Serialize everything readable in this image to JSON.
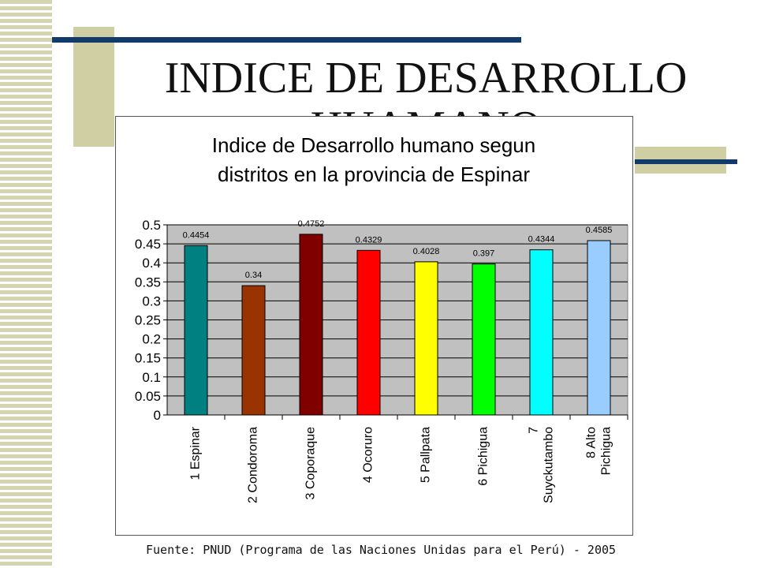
{
  "slide": {
    "title": "INDICE DE DESARROLLO HUAMANO",
    "source": "Fuente: PNUD (Programa de las Naciones Unidas para el Perú) - 2005"
  },
  "chart_data": {
    "type": "bar",
    "title_lines": [
      "Indice de Desarrollo humano segun",
      "distritos en la provincia de Espinar"
    ],
    "categories": [
      [
        "1 Espinar"
      ],
      [
        "2 Condoroma"
      ],
      [
        "3 Coporaque"
      ],
      [
        "4 Ocoruro"
      ],
      [
        "5 Pallpata"
      ],
      [
        "6 Pichigua"
      ],
      [
        "7",
        "Suyckutambo"
      ],
      [
        "8 Alto",
        "Pichigua"
      ]
    ],
    "values": [
      0.4454,
      0.34,
      0.4752,
      0.4329,
      0.4028,
      0.397,
      0.4344,
      0.4585
    ],
    "data_labels": [
      "0.4454",
      "0.34",
      "0.4752",
      "0.4329",
      "0.4028",
      "0.397",
      "0.4344",
      "0.4585"
    ],
    "colors": [
      "#008080",
      "#993300",
      "#800000",
      "#ff0000",
      "#ffff00",
      "#00ff00",
      "#00ffff",
      "#99ccff"
    ],
    "ylim": [
      0,
      0.5
    ],
    "yticks": [
      "0",
      "0.05",
      "0.1",
      "0.15",
      "0.2",
      "0.25",
      "0.3",
      "0.35",
      "0.4",
      "0.45",
      "0.5"
    ],
    "plot_background": "#c0c0c0",
    "grid": true,
    "legend": "none"
  }
}
